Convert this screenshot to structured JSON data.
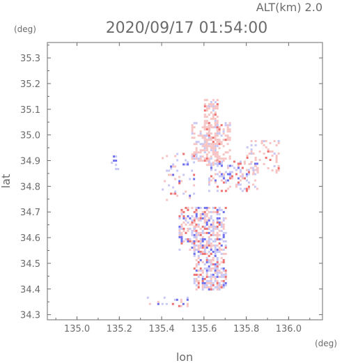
{
  "header": {
    "altitude": "ALT(km)  2.0",
    "datetime": "2020/09/17 01:54:00"
  },
  "chart_data": {
    "type": "heatmap",
    "title": "2020/09/17 01:54:00",
    "subtitle": "ALT(km)  2.0",
    "xlabel": "lon",
    "ylabel": "lat",
    "x_unit": "(deg)",
    "y_unit": "(deg)",
    "xlim": [
      134.86,
      136.16
    ],
    "ylim": [
      34.28,
      35.36
    ],
    "x_ticks": [
      "135.0",
      "135.2",
      "135.4",
      "135.6",
      "135.8",
      "136.0"
    ],
    "x_tick_values": [
      135.0,
      135.2,
      135.4,
      135.6,
      135.8,
      136.0
    ],
    "y_ticks": [
      "34.3",
      "34.4",
      "34.5",
      "34.6",
      "34.7",
      "34.8",
      "34.9",
      "35.0",
      "35.1",
      "35.2",
      "35.3"
    ],
    "y_tick_values": [
      34.3,
      34.4,
      34.5,
      34.6,
      34.7,
      34.8,
      34.9,
      35.0,
      35.1,
      35.2,
      35.3
    ],
    "grid": false,
    "colors": {
      "positive": "#f07070",
      "negative": "#6e6ef0",
      "light_positive": "#f7c4c4",
      "light_negative": "#c8c8f6"
    },
    "echo_regions": [
      {
        "lon": [
          135.55,
          135.7
        ],
        "lat": [
          34.4,
          34.72
        ],
        "density": 0.55,
        "sign": "mixed"
      },
      {
        "lon": [
          135.48,
          135.56
        ],
        "lat": [
          34.55,
          34.72
        ],
        "density": 0.45,
        "sign": "mixed"
      },
      {
        "lon": [
          135.6,
          135.66
        ],
        "lat": [
          34.88,
          35.14
        ],
        "density": 0.55,
        "sign": "positive"
      },
      {
        "lon": [
          135.54,
          135.72
        ],
        "lat": [
          34.9,
          35.05
        ],
        "density": 0.35,
        "sign": "positive"
      },
      {
        "lon": [
          135.62,
          135.85
        ],
        "lat": [
          34.78,
          34.9
        ],
        "density": 0.3,
        "sign": "mixed"
      },
      {
        "lon": [
          135.8,
          135.95
        ],
        "lat": [
          34.85,
          34.98
        ],
        "density": 0.2,
        "sign": "positive"
      },
      {
        "lon": [
          135.4,
          135.55
        ],
        "lat": [
          34.75,
          34.93
        ],
        "density": 0.12,
        "sign": "mixed"
      },
      {
        "lon": [
          135.15,
          135.19
        ],
        "lat": [
          34.86,
          34.92
        ],
        "density": 0.25,
        "sign": "negative"
      },
      {
        "lon": [
          135.33,
          135.52
        ],
        "lat": [
          34.33,
          34.37
        ],
        "density": 0.15,
        "sign": "mixed"
      }
    ]
  }
}
